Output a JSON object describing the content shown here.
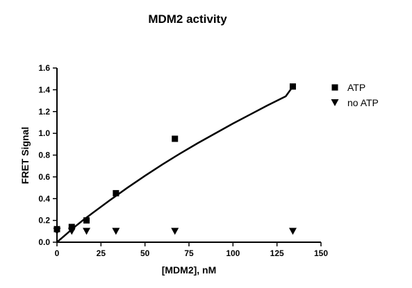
{
  "chart_data": {
    "type": "scatter",
    "title": "MDM2 activity",
    "xlabel": "[MDM2], nM",
    "ylabel": "FRET Signal",
    "xlim": [
      0,
      150
    ],
    "ylim": [
      0,
      1.6
    ],
    "x_ticks": [
      0,
      25,
      50,
      75,
      100,
      125,
      150
    ],
    "y_ticks": [
      0.0,
      0.2,
      0.4,
      0.6,
      0.8,
      1.0,
      1.2,
      1.4,
      1.6
    ],
    "x_tick_labels": [
      "0",
      "25",
      "50",
      "75",
      "100",
      "125",
      "150"
    ],
    "y_tick_labels": [
      "0.0",
      "0.2",
      "0.4",
      "0.6",
      "0.8",
      "1.0",
      "1.2",
      "1.4",
      "1.6"
    ],
    "grid": false,
    "legend_position": "right",
    "series": [
      {
        "name": "ATP",
        "marker": "square",
        "color": "#000000",
        "x": [
          0,
          8.4,
          16.8,
          33.5,
          67,
          134
        ],
        "y": [
          0.12,
          0.14,
          0.2,
          0.45,
          0.95,
          1.43
        ],
        "fit_curve": {
          "x": [
            0,
            5,
            10,
            15,
            20,
            30,
            40,
            50,
            60,
            70,
            80,
            90,
            100,
            110,
            120,
            130,
            134
          ],
          "y": [
            0.0,
            0.07,
            0.14,
            0.205,
            0.265,
            0.385,
            0.5,
            0.61,
            0.715,
            0.815,
            0.91,
            1.0,
            1.09,
            1.175,
            1.26,
            1.34,
            1.43
          ]
        }
      },
      {
        "name": "no ATP",
        "marker": "triangle-down",
        "color": "#000000",
        "x": [
          0,
          8.4,
          16.8,
          33.5,
          67,
          134
        ],
        "y": [
          0.1,
          0.1,
          0.1,
          0.1,
          0.1,
          0.1
        ]
      }
    ]
  }
}
